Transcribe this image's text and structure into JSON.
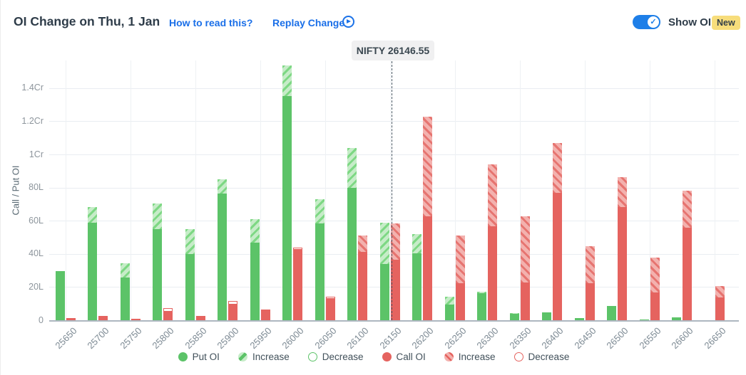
{
  "header": {
    "title": "OI Change on Thu, 1 Jan",
    "how_to_read_label": "How to read this?",
    "replay_label": "Replay Change",
    "show_oi_label": "Show OI",
    "new_badge": "New",
    "show_oi_enabled": true,
    "link_color": "#1a6fe8",
    "toggle_color": "#1e7fe8",
    "badge_color": "#f7dd7b"
  },
  "spot_marker": {
    "label": "NIFTY 26146.55",
    "value": 26146.55
  },
  "colors": {
    "put_solid": "#5cc368",
    "put_increase_bg": "#c6ecc8",
    "put_increase_stripe": "#7ed884",
    "call_solid": "#e5635f",
    "call_increase_bg": "#f3b1ae",
    "call_increase_stripe": "#e67470"
  },
  "chart_data": {
    "type": "bar",
    "title": "OI Change on Thu, 1 Jan",
    "ylabel": "Call / Put OI",
    "xlabel": "",
    "unit": "lakh (L), 1Cr = 100L",
    "y_ticks": [
      "0",
      "20L",
      "40L",
      "60L",
      "80L",
      "1Cr",
      "1.2Cr",
      "1.4Cr"
    ],
    "y_tick_values_lakh": [
      0,
      20,
      40,
      60,
      80,
      100,
      120,
      140
    ],
    "ylim_lakh": [
      0,
      157
    ],
    "grid": true,
    "legend_position": "bottom",
    "categories": [
      "25650",
      "25700",
      "25750",
      "25800",
      "25850",
      "25900",
      "25950",
      "26000",
      "26050",
      "26100",
      "26150",
      "26200",
      "26250",
      "26300",
      "26350",
      "26400",
      "26450",
      "26500",
      "26550",
      "26600",
      "26650"
    ],
    "series": [
      {
        "name": "Put OI",
        "solid": [
          30,
          59,
          26,
          55,
          40,
          76.5,
          47,
          135.5,
          58.5,
          80,
          34,
          40.5,
          9.5,
          16.5,
          4,
          4.8,
          1.6,
          9,
          0.5,
          2,
          0
        ],
        "increase": [
          0,
          9.5,
          8.5,
          15.5,
          15,
          8.5,
          14,
          18.5,
          14.5,
          24,
          25,
          11.5,
          5,
          1,
          0.5,
          0,
          0,
          0,
          0,
          0,
          0
        ],
        "decrease": [
          0,
          0,
          0,
          0,
          0,
          0,
          0,
          0,
          0,
          0,
          0,
          0,
          0,
          0,
          0,
          0,
          0,
          0,
          0,
          0,
          0
        ],
        "totals": [
          30,
          68.5,
          34.5,
          70.5,
          55,
          85,
          61,
          154,
          73,
          104,
          59,
          52,
          14.5,
          17.5,
          4.5,
          4.8,
          1.6,
          9,
          0.5,
          2,
          0
        ]
      },
      {
        "name": "Call OI",
        "solid": [
          1.4,
          2.8,
          0.9,
          5.2,
          2.9,
          9.5,
          6.7,
          42.5,
          13.2,
          41.5,
          36.5,
          63,
          22.5,
          57,
          23,
          77,
          22.5,
          68.5,
          17,
          56,
          14
        ],
        "increase": [
          0,
          0,
          0,
          0,
          0,
          0,
          0,
          0,
          0,
          10,
          22,
          60,
          29,
          37,
          40,
          30,
          22.5,
          18,
          21,
          22.5,
          7
        ],
        "decrease": [
          0,
          0,
          0,
          2.2,
          0,
          2.5,
          0,
          1.5,
          1,
          0,
          0,
          0,
          0,
          0,
          0,
          0,
          0,
          0,
          0,
          0,
          0
        ],
        "totals": [
          1.4,
          2.8,
          0.9,
          7.4,
          2.9,
          12,
          6.7,
          44,
          14.2,
          51.5,
          58.5,
          123,
          51.5,
          94,
          63,
          107,
          45,
          86.5,
          38,
          78.5,
          21
        ]
      }
    ],
    "annotation": {
      "label": "NIFTY 26146.55",
      "x": 26146.55,
      "style": "dashed-vertical-line"
    }
  },
  "legend": [
    {
      "label": "Put OI",
      "swatch": "put-solid"
    },
    {
      "label": "Increase",
      "swatch": "put-inc"
    },
    {
      "label": "Decrease",
      "swatch": "put-dec"
    },
    {
      "label": "Call OI",
      "swatch": "call-solid"
    },
    {
      "label": "Increase",
      "swatch": "call-inc"
    },
    {
      "label": "Decrease",
      "swatch": "call-dec"
    }
  ]
}
